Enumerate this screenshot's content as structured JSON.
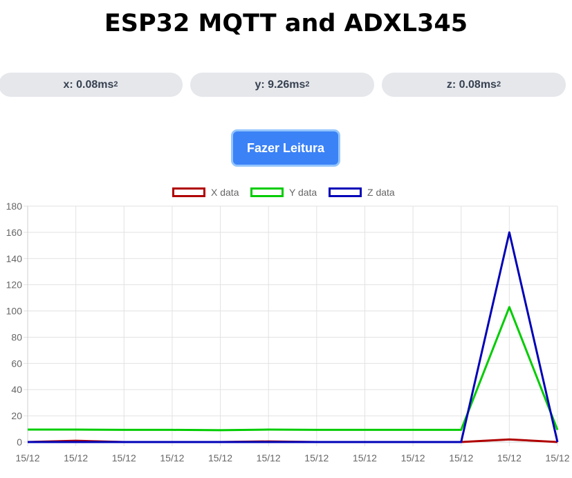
{
  "page": {
    "title": "ESP32 MQTT and ADXL345"
  },
  "readings": [
    {
      "label": "x: 0.08ms",
      "sup": "2"
    },
    {
      "label": "y: 9.26ms",
      "sup": "2"
    },
    {
      "label": "z: 0.08ms",
      "sup": "2"
    }
  ],
  "button": {
    "label": "Fazer Leitura"
  },
  "colors": {
    "x": "#b00000",
    "y": "#00cc00",
    "z": "#0000b8",
    "button": "#3b82f6"
  },
  "chart_data": {
    "type": "line",
    "x": [
      "15/12",
      "15/12",
      "15/12",
      "15/12",
      "15/12",
      "15/12",
      "15/12",
      "15/12",
      "15/12",
      "15/12",
      "15/12",
      "15/12"
    ],
    "series": [
      {
        "name": "X data",
        "values": [
          0,
          1,
          0,
          0,
          0,
          0.5,
          0,
          0,
          0,
          0,
          2,
          0
        ]
      },
      {
        "name": "Y data",
        "values": [
          9.5,
          9.5,
          9.3,
          9.3,
          9.0,
          9.5,
          9.3,
          9.3,
          9.3,
          9.3,
          103,
          9.3
        ]
      },
      {
        "name": "Z data",
        "values": [
          0,
          0,
          0,
          0,
          0,
          0,
          0,
          0,
          0,
          0,
          160,
          0
        ]
      }
    ],
    "ylim": [
      0,
      180
    ],
    "yticks": [
      "0",
      "20",
      "40",
      "60",
      "80",
      "100",
      "120",
      "140",
      "160",
      "180"
    ],
    "grid": true,
    "legend_position": "top"
  }
}
